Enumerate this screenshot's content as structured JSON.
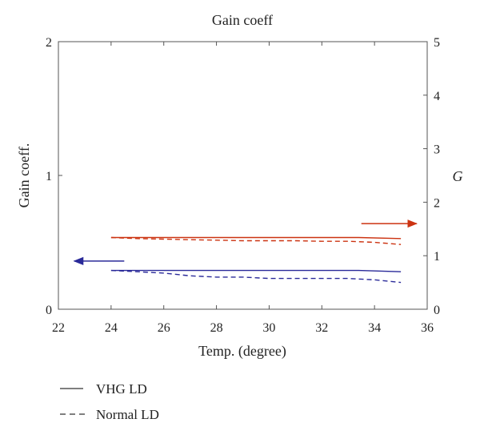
{
  "chart_data": {
    "type": "line",
    "title": "Gain coeff",
    "xlabel": "Temp. (degree)",
    "ylabel_left": "Gain coeff.",
    "ylabel_right": "G",
    "xlim": [
      22,
      36
    ],
    "ylim_left": [
      0,
      2
    ],
    "ylim_right": [
      0,
      5
    ],
    "x_ticks": [
      22,
      24,
      26,
      28,
      30,
      32,
      34,
      36
    ],
    "y_left_ticks": [
      0,
      1,
      2
    ],
    "y_right_ticks": [
      0,
      1,
      2,
      3,
      4,
      5
    ],
    "grid": false,
    "legend_position": "bottom-left",
    "legend": [
      {
        "label": "VHG LD",
        "style": "solid"
      },
      {
        "label": "Normal LD",
        "style": "dashed"
      }
    ],
    "series": [
      {
        "axis": "right",
        "style": "solid",
        "color": "#cc3311",
        "x": [
          24,
          26,
          28,
          30,
          32,
          33.4,
          35
        ],
        "y": [
          1.34,
          1.34,
          1.34,
          1.34,
          1.34,
          1.34,
          1.32
        ]
      },
      {
        "axis": "right",
        "style": "dashed",
        "color": "#cc3311",
        "x": [
          24,
          25,
          26,
          27,
          28,
          29,
          30,
          31,
          32,
          33,
          34,
          35
        ],
        "y": [
          1.34,
          1.32,
          1.31,
          1.3,
          1.29,
          1.28,
          1.28,
          1.28,
          1.27,
          1.27,
          1.25,
          1.21
        ]
      },
      {
        "axis": "left",
        "style": "solid",
        "color": "#2a2a99",
        "x": [
          24,
          26,
          28,
          30,
          32,
          33.4,
          35
        ],
        "y": [
          0.29,
          0.29,
          0.29,
          0.29,
          0.29,
          0.29,
          0.28
        ]
      },
      {
        "axis": "left",
        "style": "dashed",
        "color": "#2a2a99",
        "x": [
          24,
          25,
          26,
          27,
          28,
          29,
          30,
          31,
          32,
          33,
          34,
          35
        ],
        "y": [
          0.29,
          0.28,
          0.27,
          0.25,
          0.24,
          0.24,
          0.23,
          0.23,
          0.23,
          0.23,
          0.22,
          0.2
        ]
      }
    ],
    "annotations": [
      {
        "type": "arrow",
        "direction": "left",
        "color": "#2a2a99",
        "from": [
          24.5,
          0.36
        ],
        "to": [
          22.6,
          0.36
        ],
        "axis": "left"
      },
      {
        "type": "arrow",
        "direction": "right",
        "color": "#cc3311",
        "from": [
          33.5,
          1.6
        ],
        "to": [
          35.6,
          1.6
        ],
        "axis": "right"
      }
    ]
  }
}
